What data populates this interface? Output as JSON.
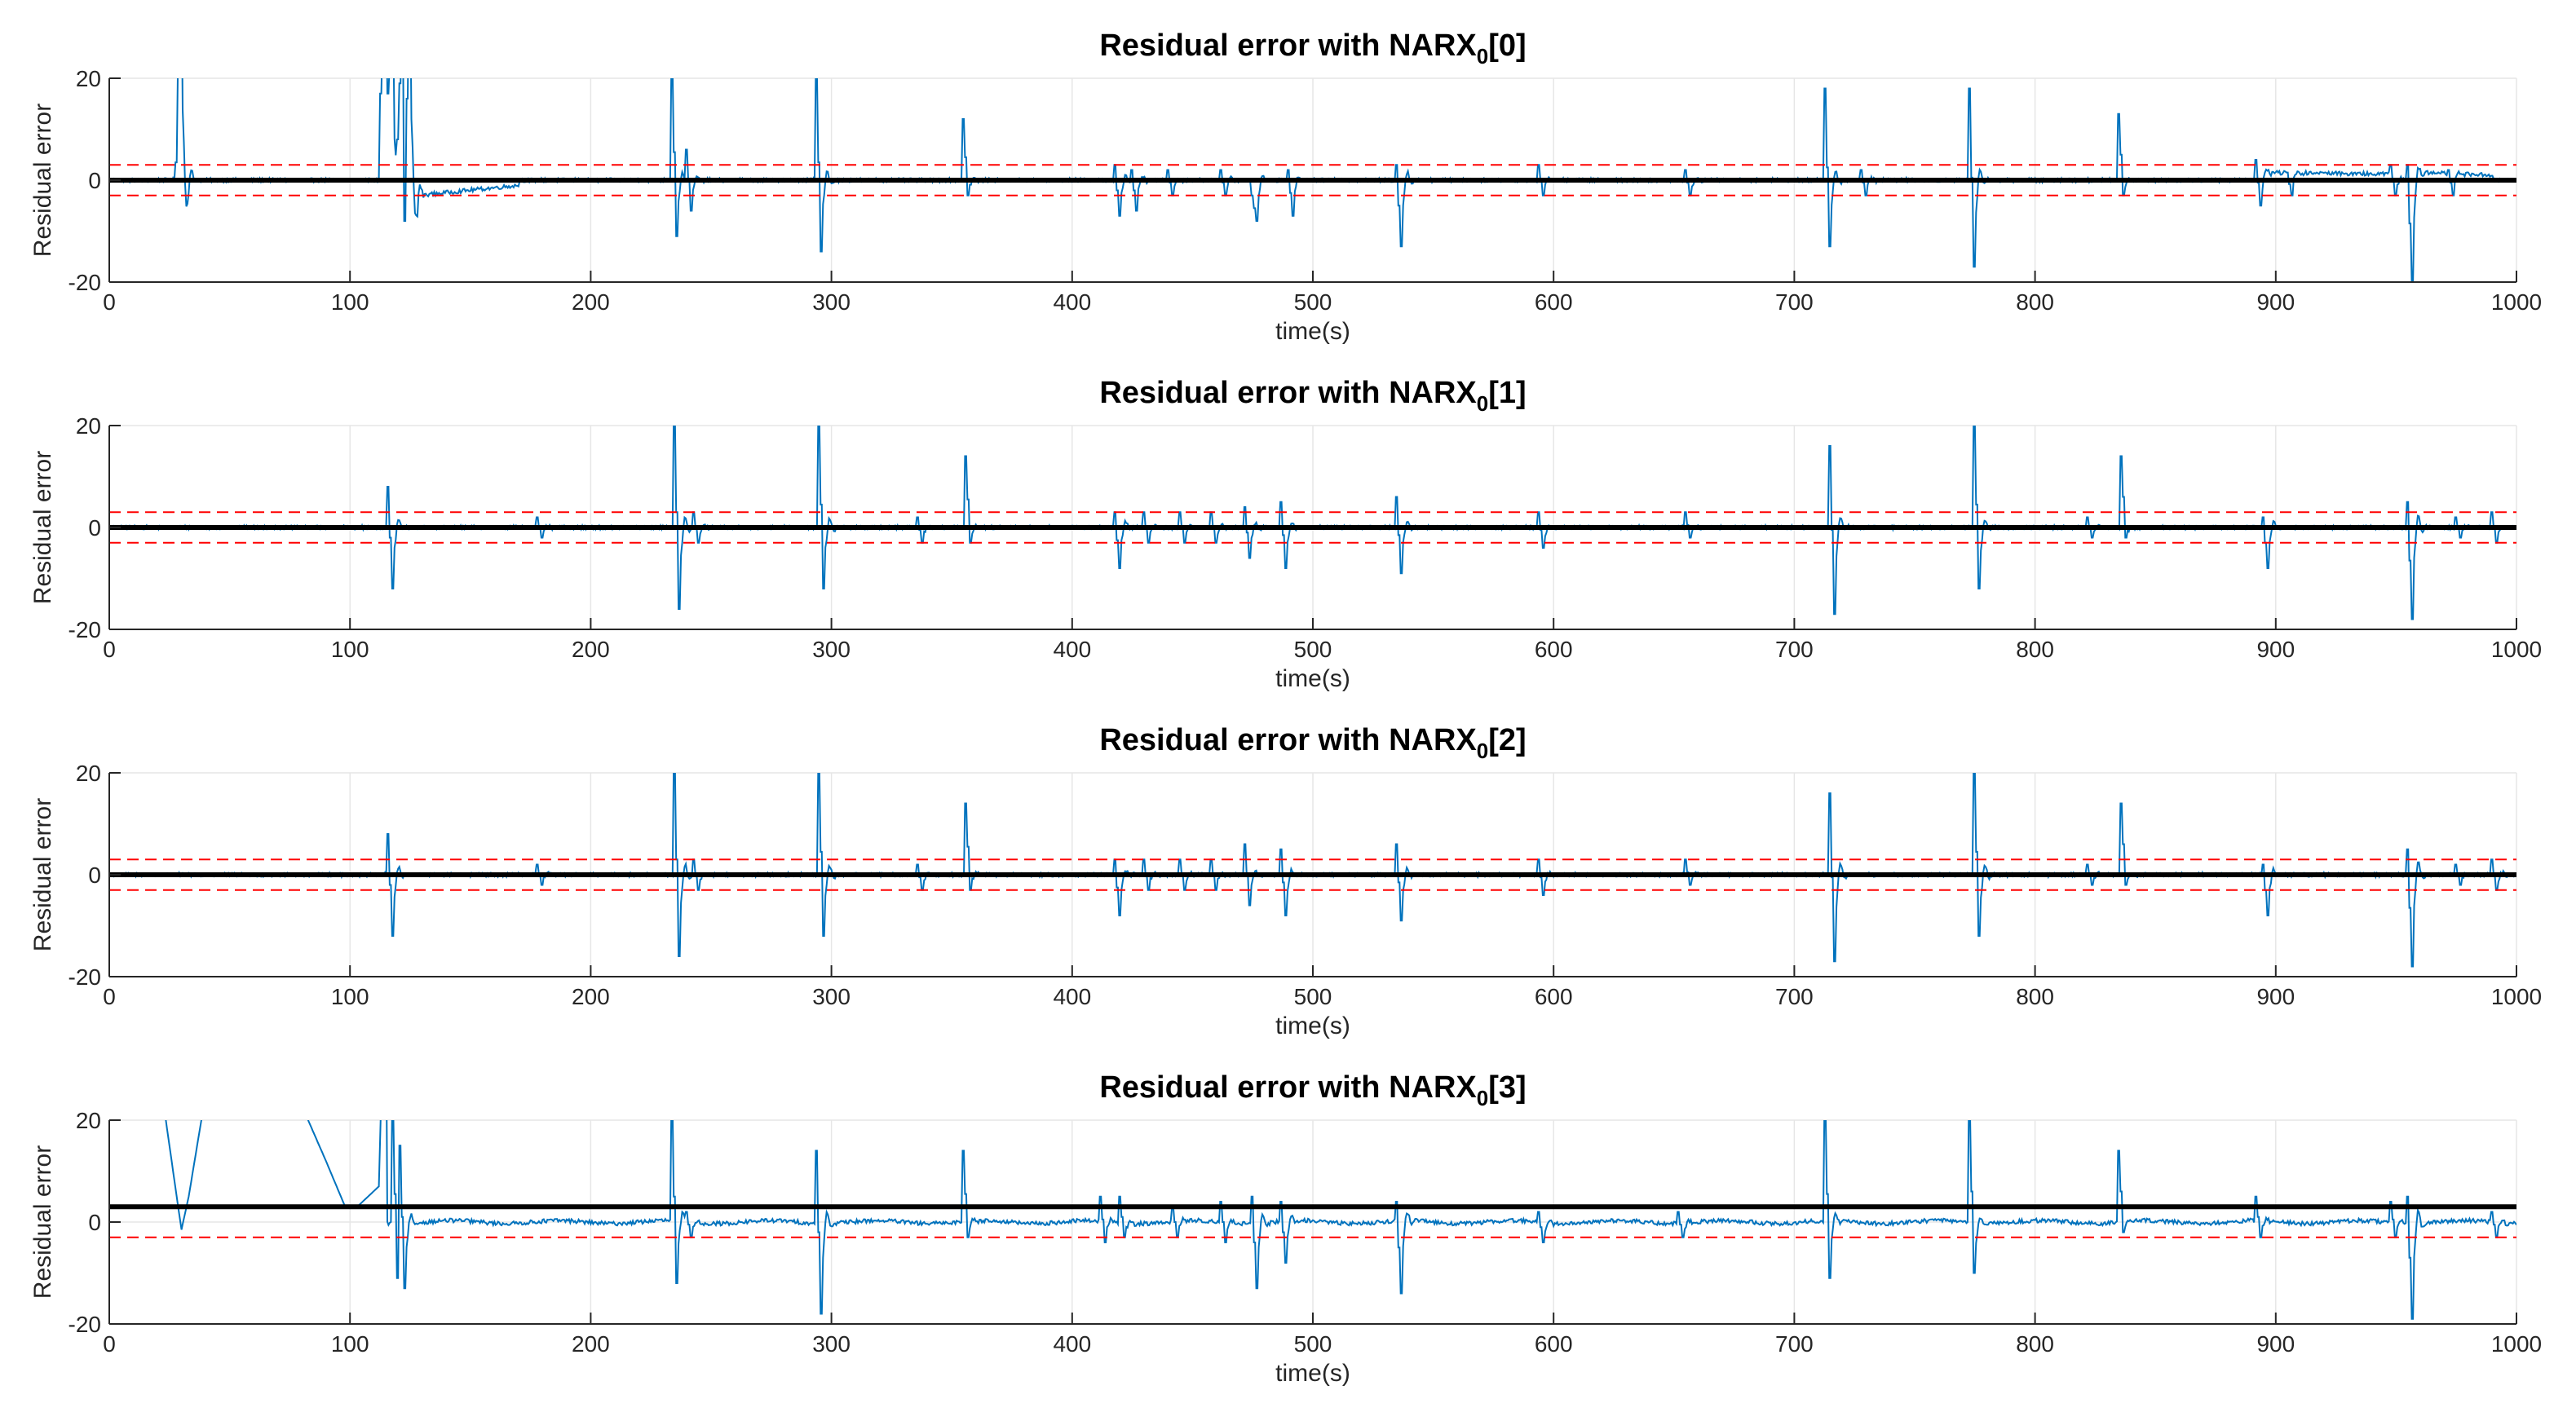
{
  "figure": {
    "background": "#ffffff",
    "colors": {
      "signal": "#0072BD",
      "threshold": "#FF0000",
      "baseline": "#000000",
      "grid": "#e6e6e6",
      "axis": "#262626"
    }
  },
  "chart_data": [
    {
      "type": "line",
      "title_main": "Residual error with NARX",
      "title_sub": "0",
      "title_suffix": "[0]",
      "xlabel": "time(s)",
      "ylabel": "Residual error",
      "xlim": [
        0,
        1000
      ],
      "ylim": [
        -20,
        20
      ],
      "xticks": [
        0,
        100,
        200,
        300,
        400,
        500,
        600,
        700,
        800,
        900,
        1000
      ],
      "yticks": [
        -20,
        0,
        20
      ],
      "grid": true,
      "thresholds": [
        3,
        -3
      ],
      "baseline": 0,
      "events": [
        [
          28,
          3.5,
          40
        ],
        [
          113,
          17,
          40
        ],
        [
          116,
          17,
          30
        ],
        [
          120,
          8,
          30
        ],
        [
          123,
          -8,
          40
        ],
        [
          234,
          22,
          -11
        ],
        [
          240,
          6,
          -6
        ],
        [
          294,
          21,
          -14
        ],
        [
          355,
          12,
          -3
        ],
        [
          418,
          3,
          -7
        ],
        [
          425,
          2,
          -6
        ],
        [
          440,
          2,
          -3
        ],
        [
          462,
          2,
          -3
        ],
        [
          475,
          -3,
          -8
        ],
        [
          490,
          2,
          -7
        ],
        [
          535,
          3,
          -13
        ],
        [
          594,
          3,
          -3
        ],
        [
          655,
          2,
          -3
        ],
        [
          713,
          18,
          -13
        ],
        [
          728,
          2,
          -3
        ],
        [
          773,
          18,
          -17
        ],
        [
          835,
          13,
          -3
        ],
        [
          892,
          4,
          -5
        ],
        [
          905,
          1.5,
          -3
        ],
        [
          948,
          3,
          -3
        ],
        [
          955,
          3,
          -20
        ],
        [
          972,
          2,
          -3
        ]
      ],
      "drifts": [
        [
          115,
          128,
          -3,
          -2
        ],
        [
          128,
          170,
          -3,
          -1
        ],
        [
          895,
          950,
          1.5,
          1.2
        ],
        [
          960,
          990,
          1.5,
          1.0
        ]
      ]
    },
    {
      "type": "line",
      "title_main": "Residual error with NARX",
      "title_sub": "0",
      "title_suffix": "[1]",
      "xlabel": "time(s)",
      "ylabel": "Residual error",
      "xlim": [
        0,
        1000
      ],
      "ylim": [
        -20,
        20
      ],
      "xticks": [
        0,
        100,
        200,
        300,
        400,
        500,
        600,
        700,
        800,
        900,
        1000
      ],
      "yticks": [
        -20,
        0,
        20
      ],
      "grid": true,
      "thresholds": [
        3,
        -3
      ],
      "baseline": 0,
      "events": [
        [
          116,
          8,
          -12
        ],
        [
          178,
          2,
          -2
        ],
        [
          235,
          22,
          -16
        ],
        [
          243,
          3,
          -3
        ],
        [
          295,
          21,
          -12
        ],
        [
          336,
          2,
          -3
        ],
        [
          356,
          14,
          -3
        ],
        [
          418,
          3,
          -8
        ],
        [
          430,
          3,
          -3
        ],
        [
          445,
          3,
          -3
        ],
        [
          458,
          3,
          -3
        ],
        [
          472,
          4,
          -6
        ],
        [
          487,
          5,
          -8
        ],
        [
          535,
          6,
          -9
        ],
        [
          594,
          3,
          -4
        ],
        [
          655,
          3,
          -2
        ],
        [
          715,
          16,
          -17
        ],
        [
          775,
          21,
          -12
        ],
        [
          822,
          2,
          -2
        ],
        [
          836,
          14,
          -2
        ],
        [
          895,
          2,
          -8
        ],
        [
          955,
          5,
          -18
        ],
        [
          975,
          2,
          -2
        ],
        [
          990,
          3,
          -3
        ]
      ],
      "drifts": []
    },
    {
      "type": "line",
      "title_main": "Residual error with NARX",
      "title_sub": "0",
      "title_suffix": "[2]",
      "xlabel": "time(s)",
      "ylabel": "Residual error",
      "xlim": [
        0,
        1000
      ],
      "ylim": [
        -20,
        20
      ],
      "xticks": [
        0,
        100,
        200,
        300,
        400,
        500,
        600,
        700,
        800,
        900,
        1000
      ],
      "yticks": [
        -20,
        0,
        20
      ],
      "grid": true,
      "thresholds": [
        3,
        -3
      ],
      "baseline": 0,
      "events": [
        [
          116,
          8,
          -12
        ],
        [
          178,
          2,
          -2
        ],
        [
          235,
          22,
          -16
        ],
        [
          243,
          3,
          -3
        ],
        [
          295,
          21,
          -12
        ],
        [
          336,
          2,
          -3
        ],
        [
          356,
          14,
          -3
        ],
        [
          418,
          3,
          -8
        ],
        [
          430,
          3,
          -3
        ],
        [
          445,
          3,
          -3
        ],
        [
          458,
          3,
          -3
        ],
        [
          472,
          6,
          -6
        ],
        [
          487,
          5,
          -8
        ],
        [
          535,
          6,
          -9
        ],
        [
          594,
          3,
          -4
        ],
        [
          655,
          3,
          -2
        ],
        [
          715,
          16,
          -17
        ],
        [
          775,
          21,
          -12
        ],
        [
          822,
          2,
          -2
        ],
        [
          836,
          14,
          -2
        ],
        [
          895,
          2,
          -8
        ],
        [
          955,
          5,
          -18
        ],
        [
          975,
          2,
          -2
        ],
        [
          990,
          3,
          -3
        ]
      ],
      "drifts": []
    },
    {
      "type": "line",
      "title_main": "Residual error with NARX",
      "title_sub": "0",
      "title_suffix": "[3]",
      "xlabel": "time(s)",
      "ylabel": "Residual error",
      "xlim": [
        0,
        1000
      ],
      "ylim": [
        -20,
        20
      ],
      "xticks": [
        0,
        100,
        200,
        300,
        400,
        500,
        600,
        700,
        800,
        900,
        1000
      ],
      "yticks": [
        -20,
        0,
        20
      ],
      "grid": true,
      "thresholds": [
        3,
        -3
      ],
      "baseline": 3,
      "curve": [
        [
          0,
          35
        ],
        [
          22,
          25
        ],
        [
          28,
          5
        ],
        [
          30,
          -1.5
        ],
        [
          33,
          5
        ],
        [
          40,
          25
        ],
        [
          45,
          40
        ],
        [
          78,
          25
        ],
        [
          90,
          12
        ],
        [
          98,
          3
        ],
        [
          103,
          3
        ],
        [
          112,
          7
        ],
        [
          113,
          25
        ],
        [
          115,
          40
        ]
      ],
      "events": [
        [
          118,
          22,
          -11
        ],
        [
          121,
          15,
          -13
        ],
        [
          234,
          22,
          -12
        ],
        [
          240,
          2,
          -3
        ],
        [
          294,
          14,
          -18
        ],
        [
          355,
          14,
          -3
        ],
        [
          412,
          5,
          -4
        ],
        [
          420,
          5,
          -3
        ],
        [
          442,
          3,
          -3
        ],
        [
          462,
          4,
          -4
        ],
        [
          475,
          5,
          -13
        ],
        [
          487,
          4,
          -8
        ],
        [
          535,
          4,
          -14
        ],
        [
          594,
          2,
          -4
        ],
        [
          652,
          2,
          -3
        ],
        [
          713,
          22,
          -11
        ],
        [
          773,
          22,
          -10
        ],
        [
          835,
          14,
          -2
        ],
        [
          892,
          5,
          -3
        ],
        [
          948,
          4,
          -3
        ],
        [
          955,
          5,
          -19
        ],
        [
          990,
          2,
          -3
        ]
      ],
      "drifts": [
        [
          120,
          1000,
          0,
          0
        ]
      ]
    }
  ]
}
